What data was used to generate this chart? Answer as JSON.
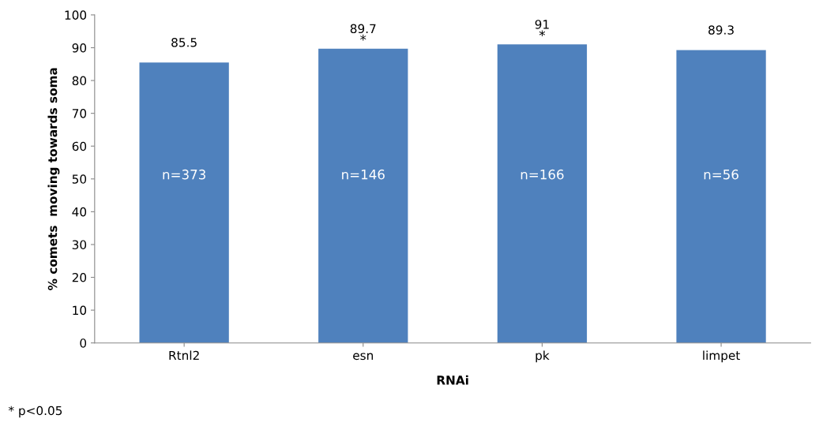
{
  "chart_data": {
    "type": "bar",
    "categories": [
      "Rtnl2",
      "esn",
      "pk",
      "limpet"
    ],
    "values": [
      85.5,
      89.7,
      91,
      89.3
    ],
    "color": "#4f81bd",
    "data_labels": true,
    "xlabel": "RNAi",
    "ylabel": "% comets  moving towards soma",
    "ylim": [
      0,
      100
    ],
    "yticks": [
      0,
      10,
      20,
      30,
      40,
      50,
      60,
      70,
      80,
      90,
      100
    ],
    "grid": false,
    "legend": false,
    "annotations": [
      "n=373",
      "n=146",
      "n=166",
      "n=56",
      {
        "text": "*",
        "x": "esn",
        "y": 90.2
      },
      {
        "text": "*",
        "x": "pk",
        "y": 91.5
      },
      "* p<0.05"
    ]
  }
}
